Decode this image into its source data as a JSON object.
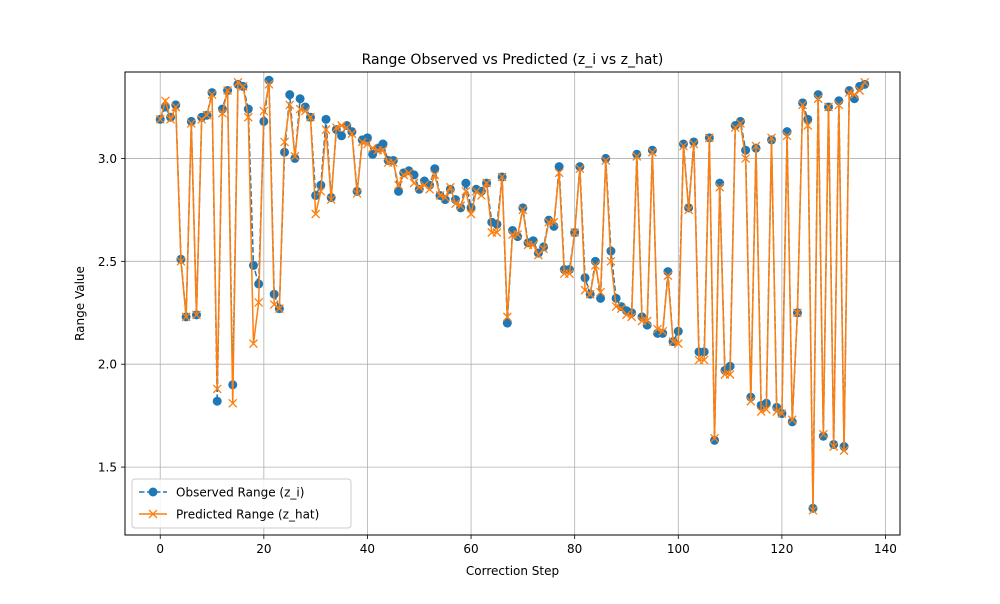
{
  "colors": {
    "observed": "#1f77b4",
    "predicted": "#ff7f0e",
    "grid": "#b0b0b0",
    "axes": "#000000"
  },
  "chart_data": {
    "type": "line",
    "title": "Range Observed vs Predicted (z_i vs z_hat)",
    "xlabel": "Correction Step",
    "ylabel": "Range Value",
    "xlim": [
      -6.8,
      142.8
    ],
    "ylim": [
      1.17,
      3.42
    ],
    "xticks": [
      0,
      20,
      40,
      60,
      80,
      100,
      120,
      140
    ],
    "yticks": [
      1.5,
      2.0,
      2.5,
      3.0
    ],
    "xtick_labels": [
      "0",
      "20",
      "40",
      "60",
      "80",
      "100",
      "120",
      "140"
    ],
    "ytick_labels": [
      "1.5",
      "2.0",
      "2.5",
      "3.0"
    ],
    "grid": true,
    "legend_position": "lower-left",
    "x": [
      0,
      1,
      2,
      3,
      4,
      5,
      6,
      7,
      8,
      9,
      10,
      11,
      12,
      13,
      14,
      15,
      16,
      17,
      18,
      19,
      20,
      21,
      22,
      23,
      24,
      25,
      26,
      27,
      28,
      29,
      30,
      31,
      32,
      33,
      34,
      35,
      36,
      37,
      38,
      39,
      40,
      41,
      42,
      43,
      44,
      45,
      46,
      47,
      48,
      49,
      50,
      51,
      52,
      53,
      54,
      55,
      56,
      57,
      58,
      59,
      60,
      61,
      62,
      63,
      64,
      65,
      66,
      67,
      68,
      69,
      70,
      71,
      72,
      73,
      74,
      75,
      76,
      77,
      78,
      79,
      80,
      81,
      82,
      83,
      84,
      85,
      86,
      87,
      88,
      89,
      90,
      91,
      92,
      93,
      94,
      95,
      96,
      97,
      98,
      99,
      100,
      101,
      102,
      103,
      104,
      105,
      106,
      107,
      108,
      109,
      110,
      111,
      112,
      113,
      114,
      115,
      116,
      117,
      118,
      119,
      120,
      121,
      122,
      123,
      124,
      125,
      126,
      127,
      128,
      129,
      130,
      131,
      132,
      133,
      134,
      135,
      136
    ],
    "series": [
      {
        "name": "Observed Range (z_i)",
        "style": "dashed-circle",
        "values": [
          3.19,
          3.25,
          3.2,
          3.26,
          2.51,
          2.23,
          3.18,
          2.24,
          3.2,
          3.21,
          3.32,
          1.82,
          3.24,
          3.33,
          1.9,
          3.36,
          3.35,
          3.24,
          2.48,
          2.39,
          3.18,
          3.38,
          2.34,
          2.27,
          3.03,
          3.31,
          3.0,
          3.29,
          3.25,
          3.2,
          2.82,
          2.87,
          3.19,
          2.81,
          3.14,
          3.11,
          3.16,
          3.13,
          2.84,
          3.09,
          3.1,
          3.02,
          3.05,
          3.07,
          2.99,
          2.99,
          2.84,
          2.93,
          2.94,
          2.92,
          2.85,
          2.89,
          2.87,
          2.95,
          2.82,
          2.8,
          2.85,
          2.8,
          2.76,
          2.88,
          2.76,
          2.85,
          2.84,
          2.88,
          2.69,
          2.68,
          2.91,
          2.2,
          2.65,
          2.62,
          2.76,
          2.59,
          2.6,
          2.54,
          2.57,
          2.7,
          2.67,
          2.96,
          2.46,
          2.46,
          2.64,
          2.96,
          2.42,
          2.34,
          2.5,
          2.32,
          3.0,
          2.55,
          2.32,
          2.28,
          2.26,
          2.25,
          3.02,
          2.23,
          2.19,
          3.04,
          2.15,
          2.15,
          2.45,
          2.11,
          2.16,
          3.07,
          2.76,
          3.08,
          2.06,
          2.06,
          3.1,
          1.63,
          2.88,
          1.97,
          1.99,
          3.16,
          3.18,
          3.04,
          1.84,
          3.05,
          1.8,
          1.81,
          3.09,
          1.79,
          1.76,
          3.13,
          1.72,
          2.25,
          3.27,
          3.19,
          1.3,
          3.31,
          1.65,
          3.25,
          1.61,
          3.28,
          1.6,
          3.33,
          3.29,
          3.35,
          3.36
        ]
      },
      {
        "name": "Predicted Range (z_hat)",
        "style": "solid-x",
        "values": [
          3.19,
          3.28,
          3.19,
          3.25,
          2.5,
          2.23,
          3.17,
          2.24,
          3.19,
          3.21,
          3.31,
          1.88,
          3.22,
          3.33,
          1.81,
          3.37,
          3.35,
          3.2,
          2.1,
          2.3,
          3.23,
          3.36,
          2.29,
          2.27,
          3.08,
          3.26,
          3.01,
          3.24,
          3.23,
          3.2,
          2.73,
          2.84,
          3.14,
          2.8,
          3.15,
          3.16,
          3.15,
          3.12,
          2.83,
          3.08,
          3.07,
          3.05,
          3.04,
          3.04,
          2.98,
          2.98,
          2.87,
          2.92,
          2.93,
          2.88,
          2.86,
          2.87,
          2.85,
          2.92,
          2.82,
          2.81,
          2.86,
          2.78,
          2.77,
          2.84,
          2.73,
          2.84,
          2.82,
          2.88,
          2.64,
          2.64,
          2.91,
          2.23,
          2.63,
          2.63,
          2.75,
          2.58,
          2.58,
          2.53,
          2.56,
          2.69,
          2.69,
          2.93,
          2.44,
          2.44,
          2.64,
          2.95,
          2.36,
          2.34,
          2.48,
          2.35,
          2.99,
          2.5,
          2.28,
          2.27,
          2.24,
          2.23,
          3.01,
          2.21,
          2.21,
          3.03,
          2.17,
          2.16,
          2.43,
          2.11,
          2.1,
          3.06,
          2.75,
          3.07,
          2.02,
          2.02,
          3.1,
          1.64,
          2.86,
          1.95,
          1.95,
          3.15,
          3.17,
          3.0,
          1.82,
          3.06,
          1.77,
          1.78,
          3.1,
          1.77,
          1.76,
          3.11,
          1.73,
          2.25,
          3.26,
          3.16,
          1.29,
          3.29,
          1.66,
          3.25,
          1.6,
          3.26,
          1.58,
          3.32,
          3.31,
          3.33,
          3.37
        ]
      }
    ]
  }
}
